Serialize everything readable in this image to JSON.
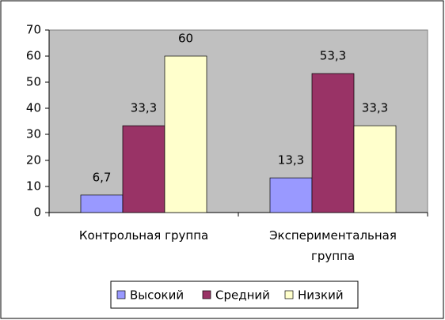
{
  "chart_data": {
    "type": "bar",
    "categories": [
      "Контрольная группа",
      "Экспериментальная группа"
    ],
    "series": [
      {
        "name": "Высокий",
        "color": "#9999ff",
        "values": [
          6.7,
          13.3
        ],
        "value_labels": [
          "6,7",
          "13,3"
        ]
      },
      {
        "name": "Средний",
        "color": "#993366",
        "values": [
          33.3,
          53.3
        ],
        "value_labels": [
          "33,3",
          "53,3"
        ]
      },
      {
        "name": "Низкий",
        "color": "#ffffcc",
        "values": [
          60,
          33.3
        ],
        "value_labels": [
          "60",
          "33,3"
        ]
      }
    ],
    "ylim": [
      0,
      70
    ],
    "yticks": [
      0,
      10,
      20,
      30,
      40,
      50,
      60,
      70
    ],
    "plot_background": "#c0c0c0",
    "legend": "bottom"
  }
}
